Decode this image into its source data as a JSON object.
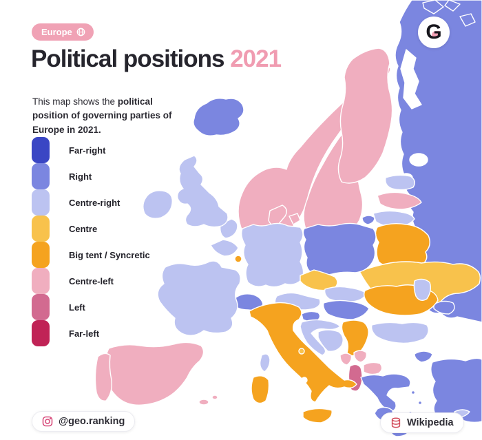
{
  "badge": {
    "label": "Europe",
    "icon": "globe-icon",
    "color": "#f0a2b5"
  },
  "title": {
    "text": "Political positions",
    "year": "2021",
    "year_color": "#f09cb1"
  },
  "subtitle": {
    "normal": "This map shows the ",
    "bold": "political position of governing parties of Europe in 2021."
  },
  "legend": {
    "items": [
      {
        "key": "far_right",
        "label": "Far-right",
        "color": "#3a46c4"
      },
      {
        "key": "right",
        "label": "Right",
        "color": "#7b86e0"
      },
      {
        "key": "centre_right",
        "label": "Centre-right",
        "color": "#bcc3f1"
      },
      {
        "key": "centre",
        "label": "Centre",
        "color": "#f8c24c"
      },
      {
        "key": "big_tent",
        "label": "Big tent / Syncretic",
        "color": "#f5a31f"
      },
      {
        "key": "centre_left",
        "label": "Centre-left",
        "color": "#f0aebf"
      },
      {
        "key": "left",
        "label": "Left",
        "color": "#d26a90"
      },
      {
        "key": "far_left",
        "label": "Far-left",
        "color": "#c02356"
      }
    ]
  },
  "footer": {
    "instagram_handle": "@geo.ranking",
    "instagram_icon": "instagram-icon",
    "source_label": "Wikipedia",
    "source_icon": "database-icon"
  },
  "logo": {
    "letter": "G",
    "name": "brand-g-logo"
  },
  "map": {
    "sea_color": "#ffffff",
    "border_color": "#ffffff",
    "countries": {
      "iceland": "right",
      "norway": "centre_left",
      "sweden": "centre_left",
      "finland": "centre_left",
      "denmark": "centre_left",
      "estonia": "centre_right",
      "latvia": "centre_left",
      "lithuania": "centre_right",
      "russia": "right",
      "belarus": "big_tent",
      "ukraine": "centre",
      "poland": "right",
      "germany": "centre_right",
      "netherlands": "centre_right",
      "belgium": "centre_right",
      "luxembourg": "big_tent",
      "france": "centre_right",
      "uk": "centre_right",
      "ireland": "centre_right",
      "spain": "centre_left",
      "portugal": "centre_left",
      "italy": "big_tent",
      "switzerland": "right",
      "austria": "centre_right",
      "czechia": "centre",
      "slovakia": "centre_right",
      "hungary": "right",
      "slovenia": "right",
      "croatia": "centre_right",
      "bosnia": "centre_right",
      "serbia": "big_tent",
      "montenegro": "centre_left",
      "kosovo": "centre_left",
      "north_macedonia": "centre_left",
      "albania": "left",
      "greece": "right",
      "bulgaria": "centre_right",
      "romania": "big_tent",
      "moldova": "centre_right",
      "turkey": "right",
      "cyprus": "centre_right",
      "san_marino": "centre"
    }
  },
  "chart_data": {
    "type": "choropleth_map",
    "title": "Political positions 2021",
    "region": "Europe",
    "legend_categories": [
      "Far-right",
      "Right",
      "Centre-right",
      "Centre",
      "Big tent / Syncretic",
      "Centre-left",
      "Left",
      "Far-left"
    ],
    "country_positions": {
      "Iceland": "Right",
      "Norway": "Centre-left",
      "Sweden": "Centre-left",
      "Finland": "Centre-left",
      "Denmark": "Centre-left",
      "Estonia": "Centre-right",
      "Latvia": "Centre-left",
      "Lithuania": "Centre-right",
      "Russia": "Right",
      "Belarus": "Big tent / Syncretic",
      "Ukraine": "Centre",
      "Poland": "Right",
      "Germany": "Centre-right",
      "Netherlands": "Centre-right",
      "Belgium": "Centre-right",
      "Luxembourg": "Big tent / Syncretic",
      "France": "Centre-right",
      "United Kingdom": "Centre-right",
      "Ireland": "Centre-right",
      "Spain": "Centre-left",
      "Portugal": "Centre-left",
      "Italy": "Big tent / Syncretic",
      "Switzerland": "Right",
      "Austria": "Centre-right",
      "Czechia": "Centre",
      "Slovakia": "Centre-right",
      "Hungary": "Right",
      "Slovenia": "Right",
      "Croatia": "Centre-right",
      "Bosnia and Herzegovina": "Centre-right",
      "Serbia": "Big tent / Syncretic",
      "Montenegro": "Centre-left",
      "Kosovo": "Centre-left",
      "North Macedonia": "Centre-left",
      "Albania": "Left",
      "Greece": "Right",
      "Bulgaria": "Centre-right",
      "Romania": "Big tent / Syncretic",
      "Moldova": "Centre-right",
      "Turkey": "Right",
      "Cyprus": "Centre-right",
      "San Marino": "Centre"
    }
  }
}
